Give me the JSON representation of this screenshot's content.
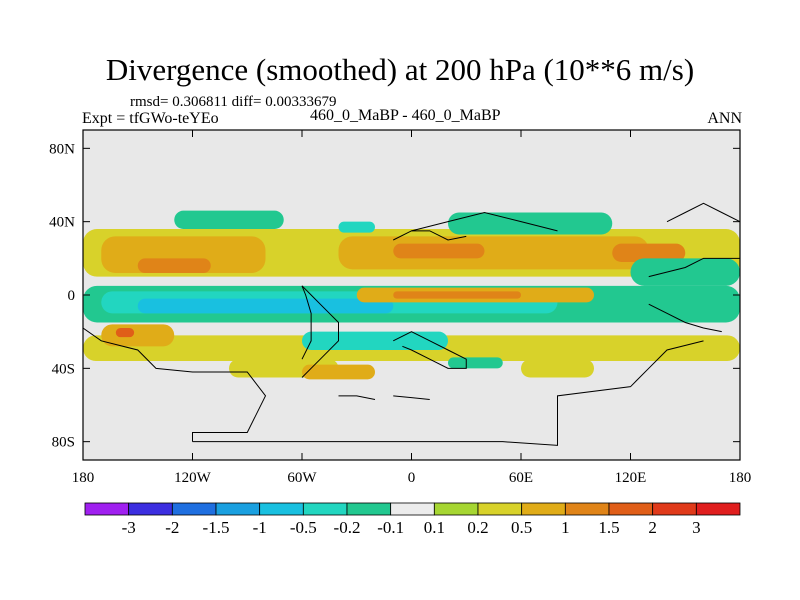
{
  "chart_data": {
    "type": "heatmap",
    "title": "Divergence (smoothed) at 200 hPa (10**6 m/s)",
    "stats": "rmsd= 0.306811 diff= 0.00333679",
    "left_label": "Expt = tfGWo-teYEo",
    "center_label": "460_0_MaBP - 460_0_MaBP",
    "right_label": "ANN",
    "xrange": [
      -180,
      180
    ],
    "yrange": [
      -90,
      90
    ],
    "x_ticks": [
      {
        "value": -180,
        "label": "180"
      },
      {
        "value": -120,
        "label": "120W"
      },
      {
        "value": -60,
        "label": "60W"
      },
      {
        "value": 0,
        "label": "0"
      },
      {
        "value": 60,
        "label": "60E"
      },
      {
        "value": 120,
        "label": "120E"
      },
      {
        "value": 180,
        "label": "180"
      }
    ],
    "y_ticks": [
      {
        "value": 80,
        "label": "80N"
      },
      {
        "value": 40,
        "label": "40N"
      },
      {
        "value": 0,
        "label": "0"
      },
      {
        "value": -40,
        "label": "40S"
      },
      {
        "value": -80,
        "label": "80S"
      }
    ],
    "colorbar": {
      "colors": [
        "#a020f0",
        "#3c2ee0",
        "#1f6fe0",
        "#1aa0e0",
        "#19c0e0",
        "#22d6c0",
        "#22c890",
        "#ececec",
        "#a6d632",
        "#d8d22a",
        "#e0ac18",
        "#e08418",
        "#e05e18",
        "#e03a1a",
        "#e01e1e"
      ],
      "labels": [
        "-3",
        "-2",
        "-1.5",
        "-1",
        "-0.5",
        "-0.2",
        "-0.1",
        "0.1",
        "0.2",
        "0.5",
        "1",
        "1.5",
        "2",
        "3"
      ]
    },
    "regions": [
      {
        "level": "0.2",
        "lon": -180,
        "lat": 36,
        "w": 360,
        "h": 26
      },
      {
        "level": "0.5",
        "lon": -170,
        "lat": 32,
        "w": 90,
        "h": 20
      },
      {
        "level": "0.5",
        "lon": -40,
        "lat": 32,
        "w": 170,
        "h": 18
      },
      {
        "level": "1",
        "lon": -150,
        "lat": 20,
        "w": 40,
        "h": 8
      },
      {
        "level": "1",
        "lon": -10,
        "lat": 28,
        "w": 50,
        "h": 8
      },
      {
        "level": "1",
        "lon": 110,
        "lat": 28,
        "w": 40,
        "h": 10
      },
      {
        "level": "-0.1",
        "lon": -130,
        "lat": 46,
        "w": 60,
        "h": 10
      },
      {
        "level": "-0.1",
        "lon": 20,
        "lat": 45,
        "w": 90,
        "h": 12
      },
      {
        "level": "-0.2",
        "lon": -40,
        "lat": 40,
        "w": 20,
        "h": 6
      },
      {
        "level": "-0.1",
        "lon": -180,
        "lat": 5,
        "w": 360,
        "h": 20
      },
      {
        "level": "-0.2",
        "lon": -170,
        "lat": 2,
        "w": 250,
        "h": 12
      },
      {
        "level": "-0.5",
        "lon": -150,
        "lat": -2,
        "w": 140,
        "h": 8
      },
      {
        "level": "0.5",
        "lon": -30,
        "lat": 4,
        "w": 130,
        "h": 8
      },
      {
        "level": "1",
        "lon": -10,
        "lat": 2,
        "w": 70,
        "h": 4
      },
      {
        "level": "0.2",
        "lon": -180,
        "lat": -22,
        "w": 360,
        "h": 14
      },
      {
        "level": "0.5",
        "lon": -170,
        "lat": -16,
        "w": 40,
        "h": 12
      },
      {
        "level": "1.5",
        "lon": -162,
        "lat": -18,
        "w": 10,
        "h": 5
      },
      {
        "level": "-0.2",
        "lon": -60,
        "lat": -20,
        "w": 80,
        "h": 10
      },
      {
        "level": "0.2",
        "lon": -100,
        "lat": -35,
        "w": 60,
        "h": 10
      },
      {
        "level": "0.5",
        "lon": -60,
        "lat": -38,
        "w": 40,
        "h": 8
      },
      {
        "level": "0.2",
        "lon": 60,
        "lat": -35,
        "w": 40,
        "h": 10
      },
      {
        "level": "-0.1",
        "lon": 20,
        "lat": -34,
        "w": 30,
        "h": 6
      },
      {
        "level": "-0.1",
        "lon": 120,
        "lat": 20,
        "w": 60,
        "h": 15
      }
    ],
    "coastlines": [
      "-180,-18 -170,-25 -150,-30 -140,-40 -120,-42 -90,-42 -80,-55 -90,-75 -120,-75 -120,-80",
      "-120,-80 -50,-80 50,-80 80,-82 80,-55 120,-50 130,-40 140,-30 160,-25",
      "-60,5 -55,0 -50,-5 -45,-10 -40,-15 -40,-25 -50,-35 -55,-40 -60,-45",
      "-60,5 -58,0 -55,-10 -55,-25 -60,-35",
      "-10,30 0,35 10,35 20,30 30,32",
      "-10,-25 0,-20 10,-25 20,-30 30,-35 30,-40 20,-40 10,-35 0,-30 -5,-28",
      "-40,-55 -30,-55 -20,-57",
      "-10,-55 0,-56 10,-57",
      "130,10 150,15 160,20 170,20 180,20",
      "130,-5 140,-10 150,-15 160,-18 170,-20",
      "0,35 20,40 40,45 60,40 80,35",
      "140,40 150,45 160,50 170,45 180,40"
    ]
  }
}
